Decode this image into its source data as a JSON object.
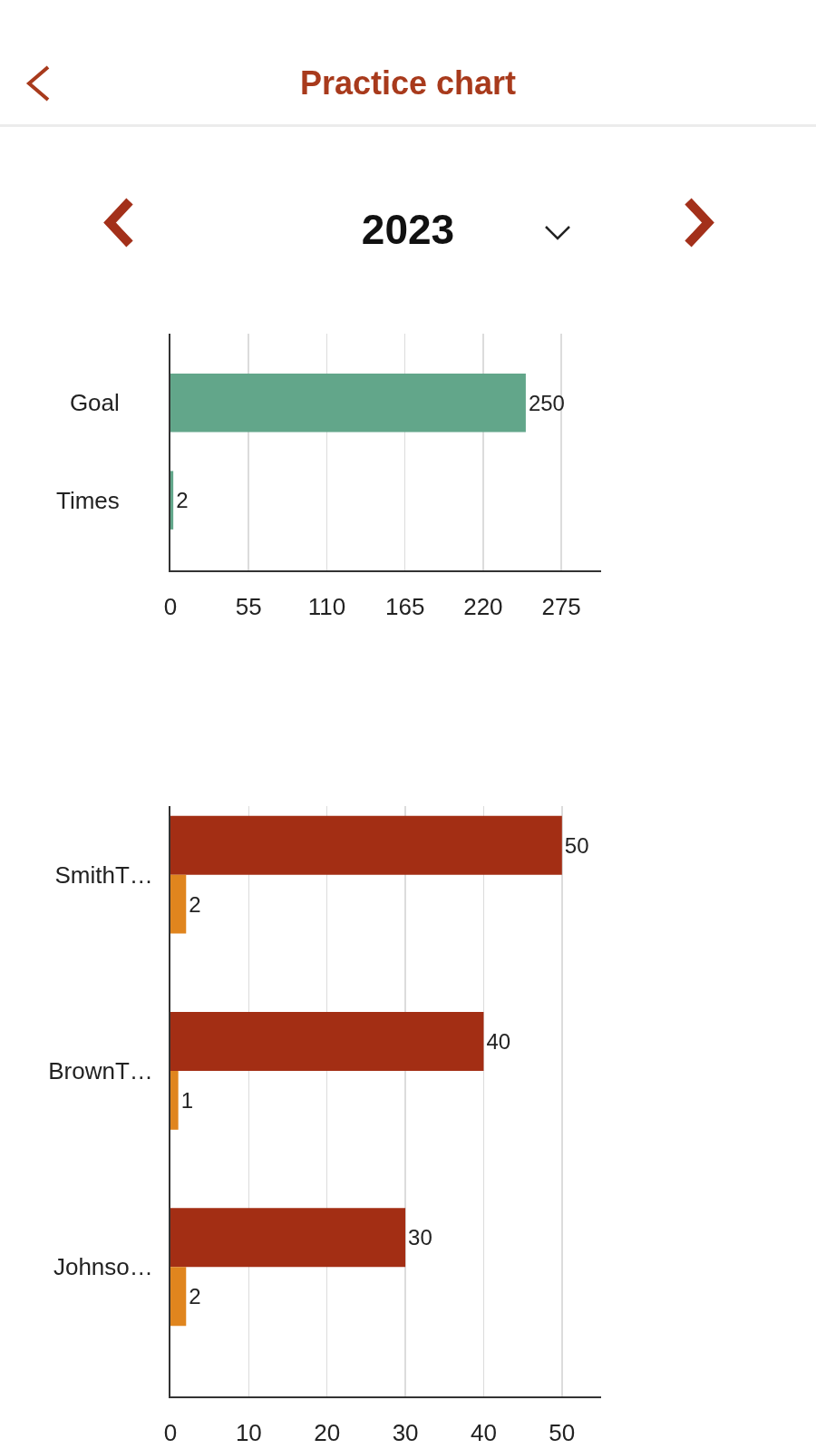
{
  "chart_data": [
    {
      "type": "bar",
      "title": "Practice chart",
      "subtitle": "2023",
      "orientation": "horizontal",
      "categories": [
        "Goal",
        "Times"
      ],
      "values": [
        250,
        2
      ],
      "color": "#62a68a",
      "xlim": [
        0,
        303
      ],
      "xticks": [
        0,
        55,
        110,
        165,
        220,
        275
      ],
      "grid": "x",
      "data_labels": true
    },
    {
      "type": "bar",
      "orientation": "horizontal",
      "categories": [
        "SmithT…",
        "BrownT…",
        "Johnso…"
      ],
      "series": [
        {
          "color": "#a32e14",
          "values": [
            50,
            40,
            30
          ]
        },
        {
          "color": "#e0851e",
          "values": [
            2,
            1,
            2
          ]
        }
      ],
      "xlim": [
        0,
        55
      ],
      "xticks": [
        0,
        10,
        20,
        30,
        40,
        50
      ],
      "grid": "x",
      "data_labels": true
    }
  ]
}
